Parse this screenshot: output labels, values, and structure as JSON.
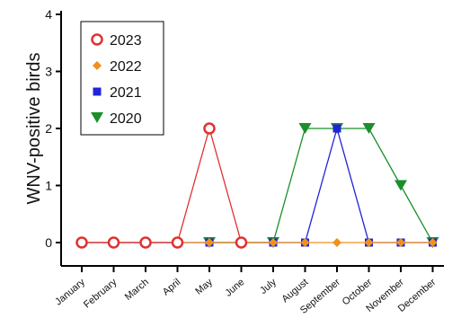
{
  "chart_data": {
    "type": "line",
    "title": "",
    "xlabel": "",
    "ylabel": "WNV-positive birds",
    "categories": [
      "January",
      "February",
      "March",
      "April",
      "May",
      "June",
      "July",
      "August",
      "September",
      "October",
      "November",
      "December"
    ],
    "ylim": [
      0,
      4
    ],
    "yticks": [
      0,
      1,
      2,
      3,
      4
    ],
    "grid": false,
    "legend_position": "top-left",
    "series": [
      {
        "name": "2023",
        "color": "#e23030",
        "marker": "open-circle",
        "values": [
          0,
          0,
          0,
          0,
          2,
          0,
          null,
          null,
          null,
          null,
          null,
          null
        ]
      },
      {
        "name": "2022",
        "color": "#f0901e",
        "marker": "diamond",
        "values": [
          0,
          0,
          0,
          0,
          0,
          0,
          0,
          0,
          0,
          0,
          0,
          0
        ]
      },
      {
        "name": "2021",
        "color": "#1f24d8",
        "marker": "square",
        "values": [
          0,
          0,
          0,
          0,
          0,
          0,
          0,
          0,
          2,
          0,
          0,
          0
        ]
      },
      {
        "name": "2020",
        "color": "#1a8f2a",
        "marker": "triangle-down",
        "values": [
          null,
          null,
          null,
          null,
          0,
          null,
          0,
          2,
          2,
          2,
          1,
          0
        ]
      }
    ]
  }
}
